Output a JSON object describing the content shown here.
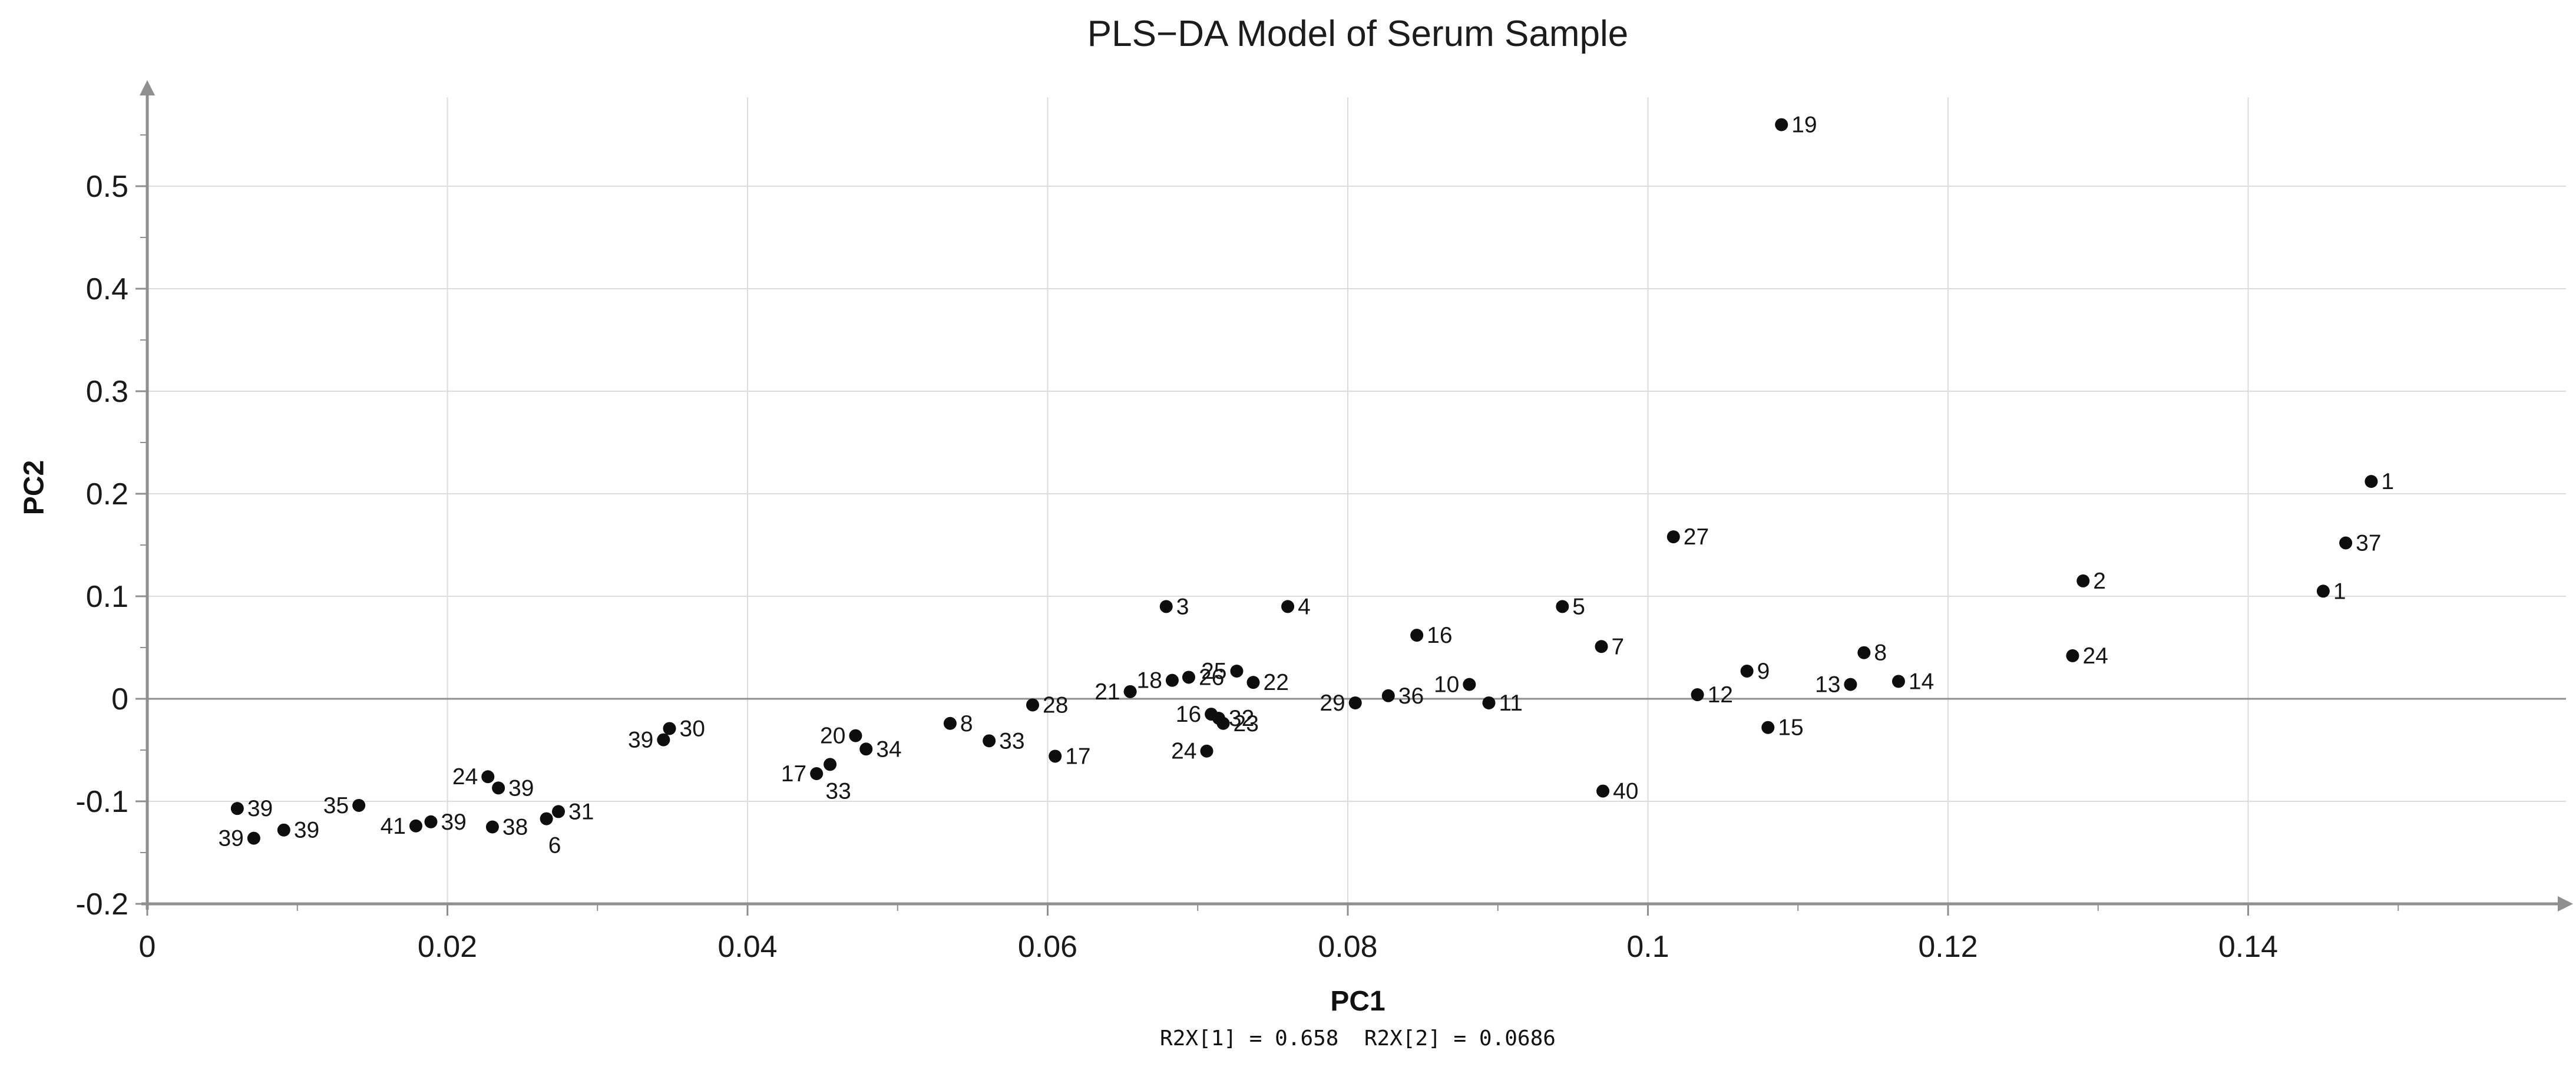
{
  "title": "PLS−DA Model of Serum Sample",
  "subtitle": "R2X[1] = 0.658  R2X[2] = 0.0686",
  "colors": {
    "background": "#ffffff",
    "point": "#0d0d0d",
    "grid_line": "#dcdcdc",
    "zero_line": "#8f8f8f",
    "axis_line": "#8f8f8f",
    "text": "#1a1a1a"
  },
  "chart_data": {
    "type": "scatter",
    "title": "PLS−DA Model of Serum Sample",
    "subtitle": "R2X[1] = 0.658  R2X[2] = 0.0686",
    "xlabel": "PC1",
    "ylabel": "PC2",
    "xlim": [
      0,
      0.1585
    ],
    "ylim": [
      -0.2,
      0.585
    ],
    "grid": true,
    "legend": false,
    "x_major_ticks": [
      {
        "value": 0,
        "label": "0"
      },
      {
        "value": 0.02,
        "label": "0.02"
      },
      {
        "value": 0.04,
        "label": "0.04"
      },
      {
        "value": 0.06,
        "label": "0.06"
      },
      {
        "value": 0.08,
        "label": "0.08"
      },
      {
        "value": 0.1,
        "label": "0.1"
      },
      {
        "value": 0.12,
        "label": "0.12"
      },
      {
        "value": 0.14,
        "label": "0.14"
      }
    ],
    "x_minor_ticks": [
      0.01,
      0.03,
      0.05,
      0.07,
      0.09,
      0.11,
      0.13,
      0.15
    ],
    "y_major_ticks": [
      {
        "value": -0.2,
        "label": "-0.2"
      },
      {
        "value": -0.1,
        "label": "-0.1"
      },
      {
        "value": 0,
        "label": "0"
      },
      {
        "value": 0.1,
        "label": "0.1"
      },
      {
        "value": 0.2,
        "label": "0.2"
      },
      {
        "value": 0.3,
        "label": "0.3"
      },
      {
        "value": 0.4,
        "label": "0.4"
      },
      {
        "value": 0.5,
        "label": "0.5"
      }
    ],
    "y_minor_ticks": [
      -0.15,
      -0.05,
      0.05,
      0.15,
      0.25,
      0.35,
      0.45,
      0.55
    ],
    "x_gridlines": [
      0.02,
      0.04,
      0.06,
      0.08,
      0.1,
      0.12,
      0.14
    ],
    "y_gridlines": [
      -0.1,
      0.1,
      0.2,
      0.3,
      0.4,
      0.5
    ],
    "zero_gridline": 0,
    "points": [
      {
        "label": "39",
        "x": 0.006,
        "y": -0.107,
        "side": "right"
      },
      {
        "label": "39",
        "x": 0.0071,
        "y": -0.136,
        "side": "left"
      },
      {
        "label": "39",
        "x": 0.0091,
        "y": -0.128,
        "side": "right"
      },
      {
        "label": "35",
        "x": 0.0141,
        "y": -0.104,
        "side": "left"
      },
      {
        "label": "41",
        "x": 0.0179,
        "y": -0.124,
        "side": "left"
      },
      {
        "label": "39",
        "x": 0.0189,
        "y": -0.12,
        "side": "right"
      },
      {
        "label": "24",
        "x": 0.0227,
        "y": -0.076,
        "side": "left"
      },
      {
        "label": "39",
        "x": 0.0234,
        "y": -0.087,
        "side": "right"
      },
      {
        "label": "38",
        "x": 0.023,
        "y": -0.125,
        "side": "right"
      },
      {
        "label": "6",
        "x": 0.0266,
        "y": -0.117,
        "side": "below"
      },
      {
        "label": "31",
        "x": 0.0274,
        "y": -0.11,
        "side": "right"
      },
      {
        "label": "39",
        "x": 0.0344,
        "y": -0.04,
        "side": "left"
      },
      {
        "label": "30",
        "x": 0.0348,
        "y": -0.029,
        "side": "right"
      },
      {
        "label": "17",
        "x": 0.0446,
        "y": -0.073,
        "side": "left"
      },
      {
        "label": "33",
        "x": 0.0455,
        "y": -0.064,
        "side": "below"
      },
      {
        "label": "20",
        "x": 0.0472,
        "y": -0.036,
        "side": "left"
      },
      {
        "label": "34",
        "x": 0.0479,
        "y": -0.049,
        "side": "right"
      },
      {
        "label": "8",
        "x": 0.0535,
        "y": -0.024,
        "side": "right"
      },
      {
        "label": "33",
        "x": 0.0561,
        "y": -0.041,
        "side": "right"
      },
      {
        "label": "28",
        "x": 0.059,
        "y": -0.006,
        "side": "right"
      },
      {
        "label": "17",
        "x": 0.0605,
        "y": -0.056,
        "side": "right"
      },
      {
        "label": "21",
        "x": 0.0655,
        "y": 0.007,
        "side": "left"
      },
      {
        "label": "3",
        "x": 0.0679,
        "y": 0.09,
        "side": "right"
      },
      {
        "label": "18",
        "x": 0.0683,
        "y": 0.018,
        "side": "left"
      },
      {
        "label": "26",
        "x": 0.0694,
        "y": 0.021,
        "side": "right"
      },
      {
        "label": "25",
        "x": 0.0726,
        "y": 0.027,
        "side": "left"
      },
      {
        "label": "22",
        "x": 0.0737,
        "y": 0.016,
        "side": "right"
      },
      {
        "label": "16",
        "x": 0.0709,
        "y": -0.015,
        "side": "left"
      },
      {
        "label": "32",
        "x": 0.0714,
        "y": -0.019,
        "side": "right"
      },
      {
        "label": "23",
        "x": 0.0717,
        "y": -0.024,
        "side": "right"
      },
      {
        "label": "24",
        "x": 0.0706,
        "y": -0.051,
        "side": "left"
      },
      {
        "label": "29",
        "x": 0.0805,
        "y": -0.004,
        "side": "left"
      },
      {
        "label": "36",
        "x": 0.0827,
        "y": 0.003,
        "side": "right"
      },
      {
        "label": "4",
        "x": 0.076,
        "y": 0.09,
        "side": "right"
      },
      {
        "label": "16",
        "x": 0.0846,
        "y": 0.062,
        "side": "right"
      },
      {
        "label": "10",
        "x": 0.0881,
        "y": 0.014,
        "side": "left"
      },
      {
        "label": "11",
        "x": 0.0894,
        "y": -0.004,
        "side": "right"
      },
      {
        "label": "5",
        "x": 0.0943,
        "y": 0.09,
        "side": "right"
      },
      {
        "label": "7",
        "x": 0.0969,
        "y": 0.051,
        "side": "right"
      },
      {
        "label": "27",
        "x": 0.1017,
        "y": 0.158,
        "side": "right"
      },
      {
        "label": "40",
        "x": 0.097,
        "y": -0.09,
        "side": "right"
      },
      {
        "label": "12",
        "x": 0.1033,
        "y": 0.004,
        "side": "right"
      },
      {
        "label": "9",
        "x": 0.1066,
        "y": 0.027,
        "side": "right"
      },
      {
        "label": "15",
        "x": 0.108,
        "y": -0.028,
        "side": "right"
      },
      {
        "label": "13",
        "x": 0.1135,
        "y": 0.014,
        "side": "left"
      },
      {
        "label": "8",
        "x": 0.1144,
        "y": 0.045,
        "side": "right"
      },
      {
        "label": "14",
        "x": 0.1167,
        "y": 0.017,
        "side": "right"
      },
      {
        "label": "19",
        "x": 0.1089,
        "y": 0.56,
        "side": "right"
      },
      {
        "label": "2",
        "x": 0.129,
        "y": 0.115,
        "side": "right"
      },
      {
        "label": "24",
        "x": 0.1283,
        "y": 0.042,
        "side": "right"
      },
      {
        "label": "1",
        "x": 0.145,
        "y": 0.105,
        "side": "right"
      },
      {
        "label": "37",
        "x": 0.1465,
        "y": 0.152,
        "side": "right"
      },
      {
        "label": "1",
        "x": 0.1482,
        "y": 0.212,
        "side": "right"
      }
    ]
  }
}
